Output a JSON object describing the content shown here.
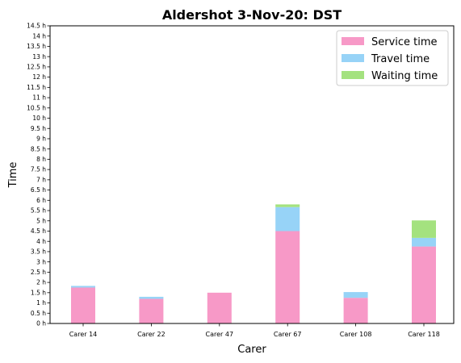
{
  "chart_data": {
    "type": "bar",
    "stacked": true,
    "title": "Aldershot 3-Nov-20: DST",
    "xlabel": "Carer",
    "ylabel": "Time",
    "ylim": [
      0,
      14.5
    ],
    "y_tick_step": 0.5,
    "y_tick_suffix": " h",
    "categories": [
      "Carer 14",
      "Carer 22",
      "Carer 47",
      "Carer 67",
      "Carer 108",
      "Carer 118"
    ],
    "series": [
      {
        "name": "Service time",
        "color": "#f799c7",
        "values": [
          1.75,
          1.2,
          1.5,
          4.5,
          1.25,
          3.75
        ]
      },
      {
        "name": "Travel time",
        "color": "#97d3f7",
        "values": [
          0.08,
          0.1,
          0.0,
          1.17,
          0.28,
          0.42
        ]
      },
      {
        "name": "Waiting time",
        "color": "#a4e27f",
        "values": [
          0.0,
          0.0,
          0.0,
          0.13,
          0.0,
          0.85
        ]
      }
    ],
    "legend_position": "top-right",
    "grid": false
  }
}
